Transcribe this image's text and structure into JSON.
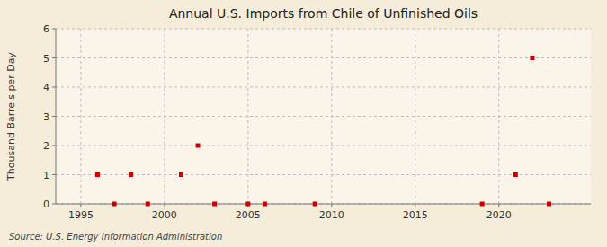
{
  "chart_data": {
    "type": "scatter",
    "title": "Annual U.S. Imports from Chile of Unfinished Oils",
    "ylabel": "Thousand Barrels per Day",
    "annotation": "Source: U.S. Energy Information Administration",
    "x": [
      1996,
      1997,
      1998,
      1999,
      2001,
      2002,
      2003,
      2005,
      2006,
      2009,
      2019,
      2021,
      2022,
      2023
    ],
    "values": [
      1,
      0,
      1,
      0,
      1,
      2,
      0,
      0,
      0,
      0,
      0,
      1,
      5,
      0
    ],
    "color": "#cc0000",
    "marker": "square",
    "xlim": [
      1993.5,
      2025.5
    ],
    "ylim": [
      0,
      6
    ],
    "xticks": [
      1995,
      2000,
      2005,
      2010,
      2015,
      2020
    ],
    "yticks": [
      0,
      1,
      2,
      3,
      4,
      5,
      6
    ],
    "grid": true
  }
}
